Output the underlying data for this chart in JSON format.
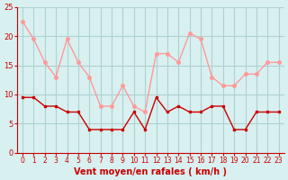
{
  "hours": [
    0,
    1,
    2,
    3,
    4,
    5,
    6,
    7,
    8,
    9,
    10,
    11,
    12,
    13,
    14,
    15,
    16,
    17,
    18,
    19,
    20,
    21,
    22,
    23
  ],
  "rafales": [
    22.5,
    19.5,
    15.5,
    13.0,
    19.5,
    15.5,
    13.0,
    8.0,
    8.0,
    11.5,
    8.0,
    7.0,
    17.0,
    17.0,
    15.5,
    20.5,
    19.5,
    13.0,
    11.5,
    11.5,
    13.5,
    13.5,
    15.5,
    15.5
  ],
  "moyen": [
    9.5,
    9.5,
    8.0,
    8.0,
    7.0,
    7.0,
    4.0,
    4.0,
    4.0,
    4.0,
    7.0,
    4.0,
    9.5,
    7.0,
    8.0,
    7.0,
    7.0,
    8.0,
    8.0,
    4.0,
    4.0,
    7.0,
    7.0,
    7.0
  ],
  "bg_color": "#d8f0f0",
  "grid_color": "#b0d0d0",
  "line_rafales_color": "#ff9999",
  "line_moyen_color": "#cc0000",
  "marker_rafales_color": "#ff9999",
  "marker_moyen_color": "#cc0000",
  "xlabel": "Vent moyen/en rafales ( km/h )",
  "ylim": [
    0,
    25
  ],
  "yticks": [
    0,
    5,
    10,
    15,
    20,
    25
  ],
  "xlabel_color": "#cc0000",
  "tick_color": "#cc0000",
  "axis_color": "#cc0000"
}
